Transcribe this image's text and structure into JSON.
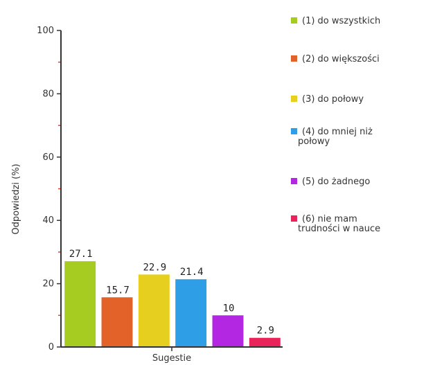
{
  "chart_data": {
    "type": "bar",
    "xlabel": "Sugestie",
    "ylabel": "Odpowiedzi (%)",
    "ylim": [
      0,
      100
    ],
    "yticks": [
      "0",
      "20",
      "40",
      "60",
      "80",
      "100"
    ],
    "grid": false,
    "legend_position": "right",
    "categories": [
      "(1) do wszystkich",
      "(2) do większości",
      "(3) do połowy",
      "(4) do mniej niż połowy",
      "(5) do żadnego",
      "(6) nie mam trudności w nauce"
    ],
    "values": [
      27.1,
      15.7,
      22.9,
      21.4,
      10,
      2.9
    ],
    "value_labels": [
      "27.1",
      "15.7",
      "22.9",
      "21.4",
      "10",
      "2.9"
    ],
    "colors": [
      "#a6cc21",
      "#e3622a",
      "#e6cf1f",
      "#2e9ee6",
      "#b327e3",
      "#e8245a"
    ],
    "legend": [
      {
        "lines": [
          "(1) do wszystkich"
        ],
        "color": "#a6cc21"
      },
      {
        "lines": [
          "(2) do większości"
        ],
        "color": "#e3622a"
      },
      {
        "lines": [
          "(3) do połowy"
        ],
        "color": "#e6cf1f"
      },
      {
        "lines": [
          "(4) do mniej niż",
          "połowy"
        ],
        "color": "#2e9ee6"
      },
      {
        "lines": [
          "(5) do żadnego"
        ],
        "color": "#b327e3"
      },
      {
        "lines": [
          "(6) nie mam",
          "trudności w nauce"
        ],
        "color": "#e8245a"
      }
    ]
  }
}
